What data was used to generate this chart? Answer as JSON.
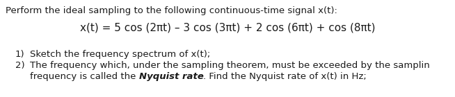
{
  "line1": "Perform the ideal sampling to the following continuous-time signal x(t):",
  "equation": "x(t) = 5 cos (2πt) – 3 cos (3πt) + 2 cos (6πt) + cos (8πt)",
  "item1_num": "1)",
  "item1_text": "Sketch the frequency spectrum of x(t);",
  "item2_num": "2)",
  "item2_line1": "The frequency which, under the sampling theorem, must be exceeded by the samplin",
  "item2_line2_pre": "frequency is called the ",
  "item2_line2_bold": "Nyquist rate",
  "item2_line2_post": ". Find the Nyquist rate of x(t) in Hz;",
  "font_family": "DejaVu Sans",
  "font_size": 9.5,
  "font_size_eq": 11.0,
  "text_color": "#1a1a1a",
  "bg_color": "#ffffff",
  "fig_width": 6.54,
  "fig_height": 1.4,
  "dpi": 100
}
